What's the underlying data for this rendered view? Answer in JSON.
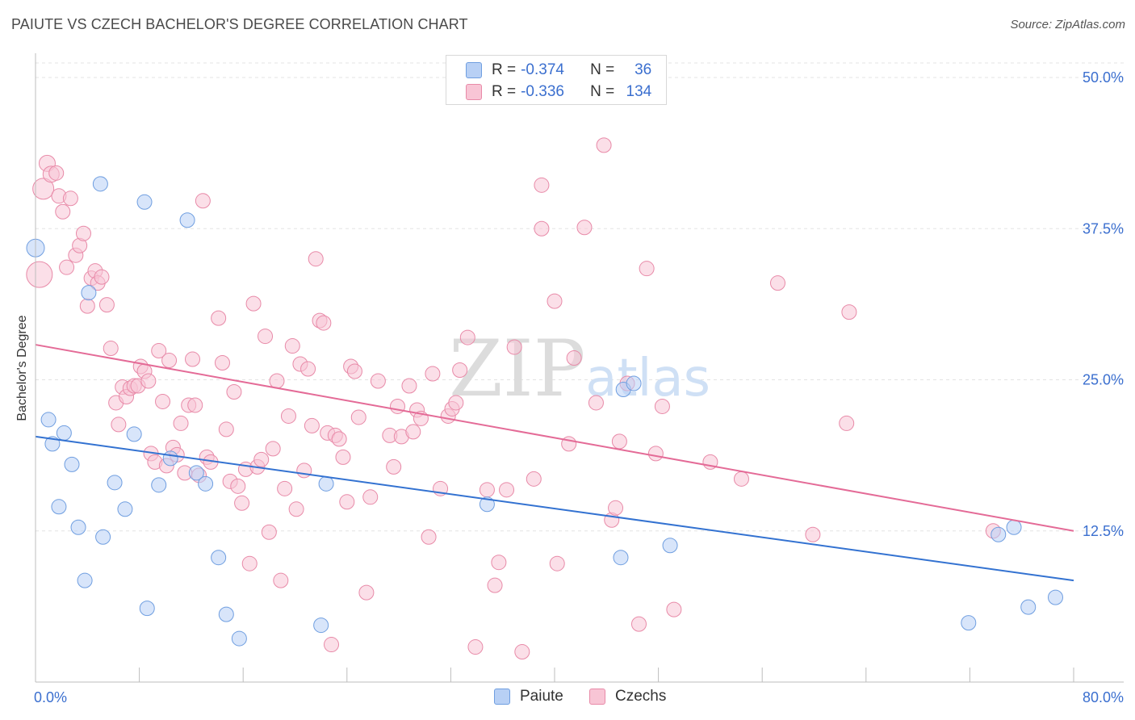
{
  "header": {
    "title": "PAIUTE VS CZECH BACHELOR'S DEGREE CORRELATION CHART",
    "source": "Source: ZipAtlas.com"
  },
  "watermark": {
    "zip": "ZIP",
    "atlas": "atlas"
  },
  "legend": {
    "series": [
      {
        "name": "Paiute",
        "r_label": "R =",
        "r_value": "-0.374",
        "n_label": "N =",
        "n_value": "36",
        "fill": "#b8d0f5",
        "stroke": "#6f9ee0"
      },
      {
        "name": "Czechs",
        "r_label": "R =",
        "r_value": "-0.336",
        "n_label": "N =",
        "n_value": "134",
        "fill": "#f8c5d5",
        "stroke": "#e88aa8"
      }
    ]
  },
  "colors": {
    "paiute_line": "#3372d1",
    "czech_line": "#e46b97",
    "tick_label": "#3b6fcf",
    "grid": "#e3e3e3"
  },
  "chart_data": {
    "type": "scatter",
    "title": "PAIUTE VS CZECH BACHELOR'S DEGREE CORRELATION CHART",
    "xlabel": "",
    "ylabel": "Bachelor's Degree",
    "xlim": [
      0,
      80
    ],
    "ylim": [
      0,
      51
    ],
    "x_tick_labels": [
      {
        "value": 0,
        "label": "0.0%"
      },
      {
        "value": 80,
        "label": "80.0%"
      }
    ],
    "x_minor_ticks": [
      0,
      8,
      16,
      24,
      32,
      40,
      48,
      56,
      64,
      72,
      80
    ],
    "y_ticks": [
      {
        "value": 12.5,
        "label": "12.5%"
      },
      {
        "value": 25.0,
        "label": "25.0%"
      },
      {
        "value": 37.5,
        "label": "37.5%"
      },
      {
        "value": 50.0,
        "label": "50.0%"
      }
    ],
    "series": [
      {
        "name": "Paiute",
        "trend": {
          "x": [
            0,
            80
          ],
          "y": [
            20.3,
            8.4
          ]
        },
        "points": [
          [
            0.0,
            35.9,
            11
          ],
          [
            1.0,
            21.7,
            9
          ],
          [
            1.3,
            19.7,
            9
          ],
          [
            2.2,
            20.6,
            9
          ],
          [
            2.8,
            18.0,
            9
          ],
          [
            1.8,
            14.5,
            9
          ],
          [
            3.3,
            12.8,
            9
          ],
          [
            3.8,
            8.4,
            9
          ],
          [
            4.1,
            32.2,
            9
          ],
          [
            5.0,
            41.2,
            9
          ],
          [
            5.2,
            12.0,
            9
          ],
          [
            6.1,
            16.5,
            9
          ],
          [
            6.9,
            14.3,
            9
          ],
          [
            7.6,
            20.5,
            9
          ],
          [
            8.4,
            39.7,
            9
          ],
          [
            8.6,
            6.1,
            9
          ],
          [
            9.5,
            16.3,
            9
          ],
          [
            10.4,
            18.5,
            9
          ],
          [
            11.7,
            38.2,
            9
          ],
          [
            12.4,
            17.3,
            9
          ],
          [
            13.1,
            16.4,
            9
          ],
          [
            14.1,
            10.3,
            9
          ],
          [
            14.7,
            5.6,
            9
          ],
          [
            15.7,
            3.6,
            9
          ],
          [
            22.0,
            4.7,
            9
          ],
          [
            22.4,
            16.4,
            9
          ],
          [
            34.8,
            14.7,
            9
          ],
          [
            45.3,
            24.2,
            9
          ],
          [
            46.1,
            24.7,
            9
          ],
          [
            45.1,
            10.3,
            9
          ],
          [
            48.9,
            11.3,
            9
          ],
          [
            71.9,
            4.9,
            9
          ],
          [
            74.2,
            12.2,
            9
          ],
          [
            75.4,
            12.8,
            9
          ],
          [
            76.5,
            6.2,
            9
          ],
          [
            78.6,
            7.0,
            9
          ]
        ]
      },
      {
        "name": "Czechs",
        "trend": {
          "x": [
            0,
            80
          ],
          "y": [
            27.9,
            12.5
          ]
        },
        "points": [
          [
            0.3,
            33.7,
            16
          ],
          [
            0.6,
            40.8,
            13
          ],
          [
            0.9,
            42.9,
            10
          ],
          [
            1.2,
            42.0,
            10
          ],
          [
            1.6,
            42.1,
            9
          ],
          [
            1.8,
            40.2,
            9
          ],
          [
            2.1,
            38.9,
            9
          ],
          [
            2.7,
            40.0,
            9
          ],
          [
            2.4,
            34.3,
            9
          ],
          [
            3.1,
            35.3,
            9
          ],
          [
            3.4,
            36.1,
            9
          ],
          [
            3.7,
            37.1,
            9
          ],
          [
            4.0,
            31.1,
            9
          ],
          [
            4.3,
            33.4,
            9
          ],
          [
            4.6,
            34.0,
            9
          ],
          [
            4.8,
            33.0,
            9
          ],
          [
            5.1,
            33.5,
            9
          ],
          [
            5.5,
            31.2,
            9
          ],
          [
            5.8,
            27.6,
            9
          ],
          [
            6.2,
            23.1,
            9
          ],
          [
            6.4,
            21.3,
            9
          ],
          [
            6.7,
            24.4,
            9
          ],
          [
            7.0,
            23.6,
            9
          ],
          [
            7.3,
            24.3,
            9
          ],
          [
            7.6,
            24.5,
            9
          ],
          [
            7.9,
            24.5,
            9
          ],
          [
            8.1,
            26.1,
            9
          ],
          [
            8.4,
            25.7,
            9
          ],
          [
            8.7,
            24.9,
            9
          ],
          [
            8.9,
            18.9,
            9
          ],
          [
            9.2,
            18.2,
            9
          ],
          [
            9.5,
            27.4,
            9
          ],
          [
            9.8,
            23.2,
            9
          ],
          [
            10.1,
            17.9,
            9
          ],
          [
            10.3,
            26.6,
            9
          ],
          [
            10.6,
            19.4,
            9
          ],
          [
            10.9,
            18.8,
            9
          ],
          [
            11.2,
            21.4,
            9
          ],
          [
            11.5,
            17.3,
            9
          ],
          [
            11.8,
            22.9,
            9
          ],
          [
            12.1,
            26.7,
            9
          ],
          [
            12.3,
            22.9,
            9
          ],
          [
            12.6,
            17.1,
            9
          ],
          [
            12.9,
            39.8,
            9
          ],
          [
            13.2,
            18.6,
            9
          ],
          [
            13.5,
            18.2,
            9
          ],
          [
            14.1,
            30.1,
            9
          ],
          [
            14.4,
            26.4,
            9
          ],
          [
            14.7,
            20.9,
            9
          ],
          [
            15.0,
            16.6,
            9
          ],
          [
            15.3,
            24.0,
            9
          ],
          [
            15.6,
            16.2,
            9
          ],
          [
            15.9,
            14.8,
            9
          ],
          [
            16.2,
            17.6,
            9
          ],
          [
            16.5,
            9.8,
            9
          ],
          [
            16.8,
            31.3,
            9
          ],
          [
            17.1,
            17.8,
            9
          ],
          [
            17.4,
            18.4,
            9
          ],
          [
            17.7,
            28.6,
            9
          ],
          [
            18.0,
            12.4,
            9
          ],
          [
            18.3,
            19.3,
            9
          ],
          [
            18.6,
            24.9,
            9
          ],
          [
            18.9,
            8.4,
            9
          ],
          [
            19.2,
            16.0,
            9
          ],
          [
            19.5,
            22.0,
            9
          ],
          [
            19.8,
            27.8,
            9
          ],
          [
            20.1,
            14.3,
            9
          ],
          [
            20.4,
            26.3,
            9
          ],
          [
            20.7,
            17.5,
            9
          ],
          [
            21.0,
            25.9,
            9
          ],
          [
            21.3,
            21.2,
            9
          ],
          [
            21.6,
            35.0,
            9
          ],
          [
            21.9,
            29.9,
            9
          ],
          [
            22.2,
            29.7,
            9
          ],
          [
            22.5,
            20.6,
            9
          ],
          [
            22.8,
            3.1,
            9
          ],
          [
            23.1,
            20.4,
            9
          ],
          [
            23.4,
            20.1,
            9
          ],
          [
            23.7,
            18.6,
            9
          ],
          [
            24.0,
            14.9,
            9
          ],
          [
            24.3,
            26.1,
            9
          ],
          [
            24.6,
            25.7,
            9
          ],
          [
            24.9,
            21.9,
            9
          ],
          [
            25.5,
            7.4,
            9
          ],
          [
            25.8,
            15.3,
            9
          ],
          [
            26.4,
            24.9,
            9
          ],
          [
            27.3,
            20.4,
            9
          ],
          [
            27.6,
            17.8,
            9
          ],
          [
            27.9,
            22.8,
            9
          ],
          [
            28.2,
            20.3,
            9
          ],
          [
            28.8,
            24.5,
            9
          ],
          [
            29.1,
            20.7,
            9
          ],
          [
            29.4,
            22.5,
            9
          ],
          [
            29.7,
            21.8,
            9
          ],
          [
            30.3,
            12.0,
            9
          ],
          [
            30.6,
            25.5,
            9
          ],
          [
            31.2,
            16.0,
            9
          ],
          [
            31.8,
            22.0,
            9
          ],
          [
            32.1,
            22.6,
            9
          ],
          [
            32.4,
            23.1,
            9
          ],
          [
            32.7,
            25.8,
            9
          ],
          [
            33.3,
            28.5,
            9
          ],
          [
            33.9,
            2.9,
            9
          ],
          [
            34.8,
            15.9,
            9
          ],
          [
            35.4,
            8.0,
            9
          ],
          [
            35.7,
            9.9,
            9
          ],
          [
            36.3,
            15.9,
            9
          ],
          [
            36.9,
            27.7,
            9
          ],
          [
            37.5,
            2.5,
            9
          ],
          [
            38.4,
            16.8,
            9
          ],
          [
            39.0,
            41.1,
            9
          ],
          [
            39.0,
            37.5,
            9
          ],
          [
            40.0,
            31.5,
            9
          ],
          [
            40.2,
            9.8,
            9
          ],
          [
            41.1,
            19.7,
            9
          ],
          [
            41.5,
            26.8,
            9
          ],
          [
            42.3,
            37.6,
            9
          ],
          [
            43.2,
            23.1,
            9
          ],
          [
            43.8,
            44.4,
            9
          ],
          [
            44.4,
            13.4,
            9
          ],
          [
            44.7,
            14.4,
            9
          ],
          [
            45.0,
            19.9,
            9
          ],
          [
            45.6,
            24.7,
            9
          ],
          [
            46.5,
            4.8,
            9
          ],
          [
            47.1,
            34.2,
            9
          ],
          [
            47.8,
            18.9,
            9
          ],
          [
            48.3,
            22.8,
            9
          ],
          [
            49.2,
            6.0,
            9
          ],
          [
            52.0,
            18.2,
            9
          ],
          [
            54.4,
            16.8,
            9
          ],
          [
            57.2,
            33.0,
            9
          ],
          [
            59.9,
            12.2,
            9
          ],
          [
            62.5,
            21.4,
            9
          ],
          [
            62.7,
            30.6,
            9
          ],
          [
            73.8,
            12.5,
            9
          ]
        ]
      }
    ]
  }
}
